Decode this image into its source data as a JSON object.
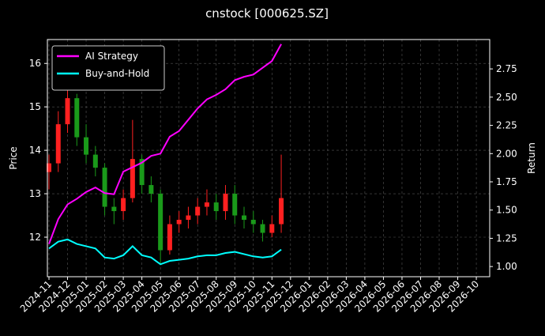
{
  "chart_data": {
    "type": "candlestick",
    "title": "cnstock [000625.SZ]",
    "ylabel": "Price",
    "y2label": "Return",
    "x": [
      0,
      0.5,
      1,
      1.5,
      2,
      2.5,
      3,
      3.5,
      4,
      4.5,
      5,
      5.5,
      6,
      6.5,
      7,
      7.5,
      8,
      8.5,
      9,
      9.5,
      10,
      10.5,
      11,
      11.5,
      12,
      12.5
    ],
    "open": [
      13.5,
      13.7,
      14.6,
      15.2,
      14.3,
      13.9,
      13.6,
      12.7,
      12.6,
      12.9,
      13.8,
      13.2,
      13.0,
      11.7,
      12.3,
      12.4,
      12.5,
      12.7,
      12.8,
      12.6,
      13.0,
      12.5,
      12.4,
      12.3,
      12.1,
      12.3
    ],
    "high": [
      13.9,
      14.9,
      15.7,
      15.3,
      14.6,
      14.1,
      13.7,
      12.9,
      13.1,
      14.7,
      13.9,
      13.4,
      13.1,
      12.5,
      12.6,
      12.7,
      12.9,
      13.1,
      13.0,
      13.2,
      13.2,
      12.7,
      12.6,
      12.4,
      12.5,
      13.9
    ],
    "low": [
      13.1,
      13.5,
      14.4,
      14.1,
      13.7,
      13.4,
      12.5,
      12.3,
      12.4,
      12.8,
      13.0,
      12.8,
      11.4,
      11.6,
      12.1,
      12.2,
      12.3,
      12.5,
      12.4,
      12.4,
      12.3,
      12.2,
      12.1,
      11.9,
      12.0,
      12.1
    ],
    "close": [
      13.7,
      14.6,
      15.2,
      14.3,
      13.9,
      13.6,
      12.7,
      12.6,
      12.9,
      13.8,
      13.2,
      13.0,
      11.7,
      12.3,
      12.4,
      12.5,
      12.7,
      12.8,
      12.6,
      13.0,
      12.5,
      12.4,
      12.3,
      12.1,
      12.3,
      12.9
    ],
    "up_color": "#ff2020",
    "down_color": "#1a9a1a",
    "series": [
      {
        "name": "AI Strategy",
        "color": "#ff00ff",
        "axis": "y2",
        "values": [
          1.2,
          1.42,
          1.55,
          1.6,
          1.66,
          1.7,
          1.65,
          1.64,
          1.84,
          1.88,
          1.92,
          1.98,
          2.0,
          2.15,
          2.2,
          2.3,
          2.4,
          2.48,
          2.52,
          2.57,
          2.65,
          2.68,
          2.7,
          2.76,
          2.82,
          2.97
        ]
      },
      {
        "name": "Buy-and-Hold",
        "color": "#00ffff",
        "axis": "y2",
        "values": [
          1.16,
          1.22,
          1.24,
          1.2,
          1.18,
          1.16,
          1.08,
          1.07,
          1.1,
          1.18,
          1.1,
          1.08,
          1.02,
          1.05,
          1.06,
          1.07,
          1.09,
          1.1,
          1.1,
          1.12,
          1.13,
          1.11,
          1.09,
          1.08,
          1.09,
          1.15
        ]
      }
    ],
    "xlim": [
      -0.085,
      23.72
    ],
    "xticks": [
      {
        "value": 0,
        "label": "2024-11"
      },
      {
        "value": 1,
        "label": "2024-12"
      },
      {
        "value": 2,
        "label": "2025-01"
      },
      {
        "value": 3,
        "label": "2025-02"
      },
      {
        "value": 4,
        "label": "2025-03"
      },
      {
        "value": 5,
        "label": "2025-04"
      },
      {
        "value": 6,
        "label": "2025-05"
      },
      {
        "value": 7,
        "label": "2025-06"
      },
      {
        "value": 8,
        "label": "2025-07"
      },
      {
        "value": 9,
        "label": "2025-08"
      },
      {
        "value": 10,
        "label": "2025-09"
      },
      {
        "value": 11,
        "label": "2025-10"
      },
      {
        "value": 12,
        "label": "2025-11"
      },
      {
        "value": 13,
        "label": "2025-12"
      },
      {
        "value": 14,
        "label": "2026-01"
      },
      {
        "value": 15,
        "label": "2026-02"
      },
      {
        "value": 16,
        "label": "2026-03"
      },
      {
        "value": 17,
        "label": "2026-04"
      },
      {
        "value": 18,
        "label": "2026-05"
      },
      {
        "value": 19,
        "label": "2026-06"
      },
      {
        "value": 20,
        "label": "2026-07"
      },
      {
        "value": 21,
        "label": "2026-08"
      },
      {
        "value": 22,
        "label": "2026-09"
      },
      {
        "value": 23,
        "label": "2026-10"
      }
    ],
    "ylim": [
      11.09,
      16.55
    ],
    "yticks": [
      12,
      13,
      14,
      15,
      16
    ],
    "y2lim": [
      0.91,
      3.01
    ],
    "y2ticks": [
      {
        "value": 1,
        "label": "1.00"
      },
      {
        "value": 1.25,
        "label": "1.25"
      },
      {
        "value": 1.5,
        "label": "1.50"
      },
      {
        "value": 1.75,
        "label": "1.75"
      },
      {
        "value": 2,
        "label": "2.00"
      },
      {
        "value": 2.25,
        "label": "2.25"
      },
      {
        "value": 2.5,
        "label": "2.50"
      },
      {
        "value": 2.75,
        "label": "2.75"
      }
    ],
    "grid": true,
    "legend": "upper left"
  }
}
